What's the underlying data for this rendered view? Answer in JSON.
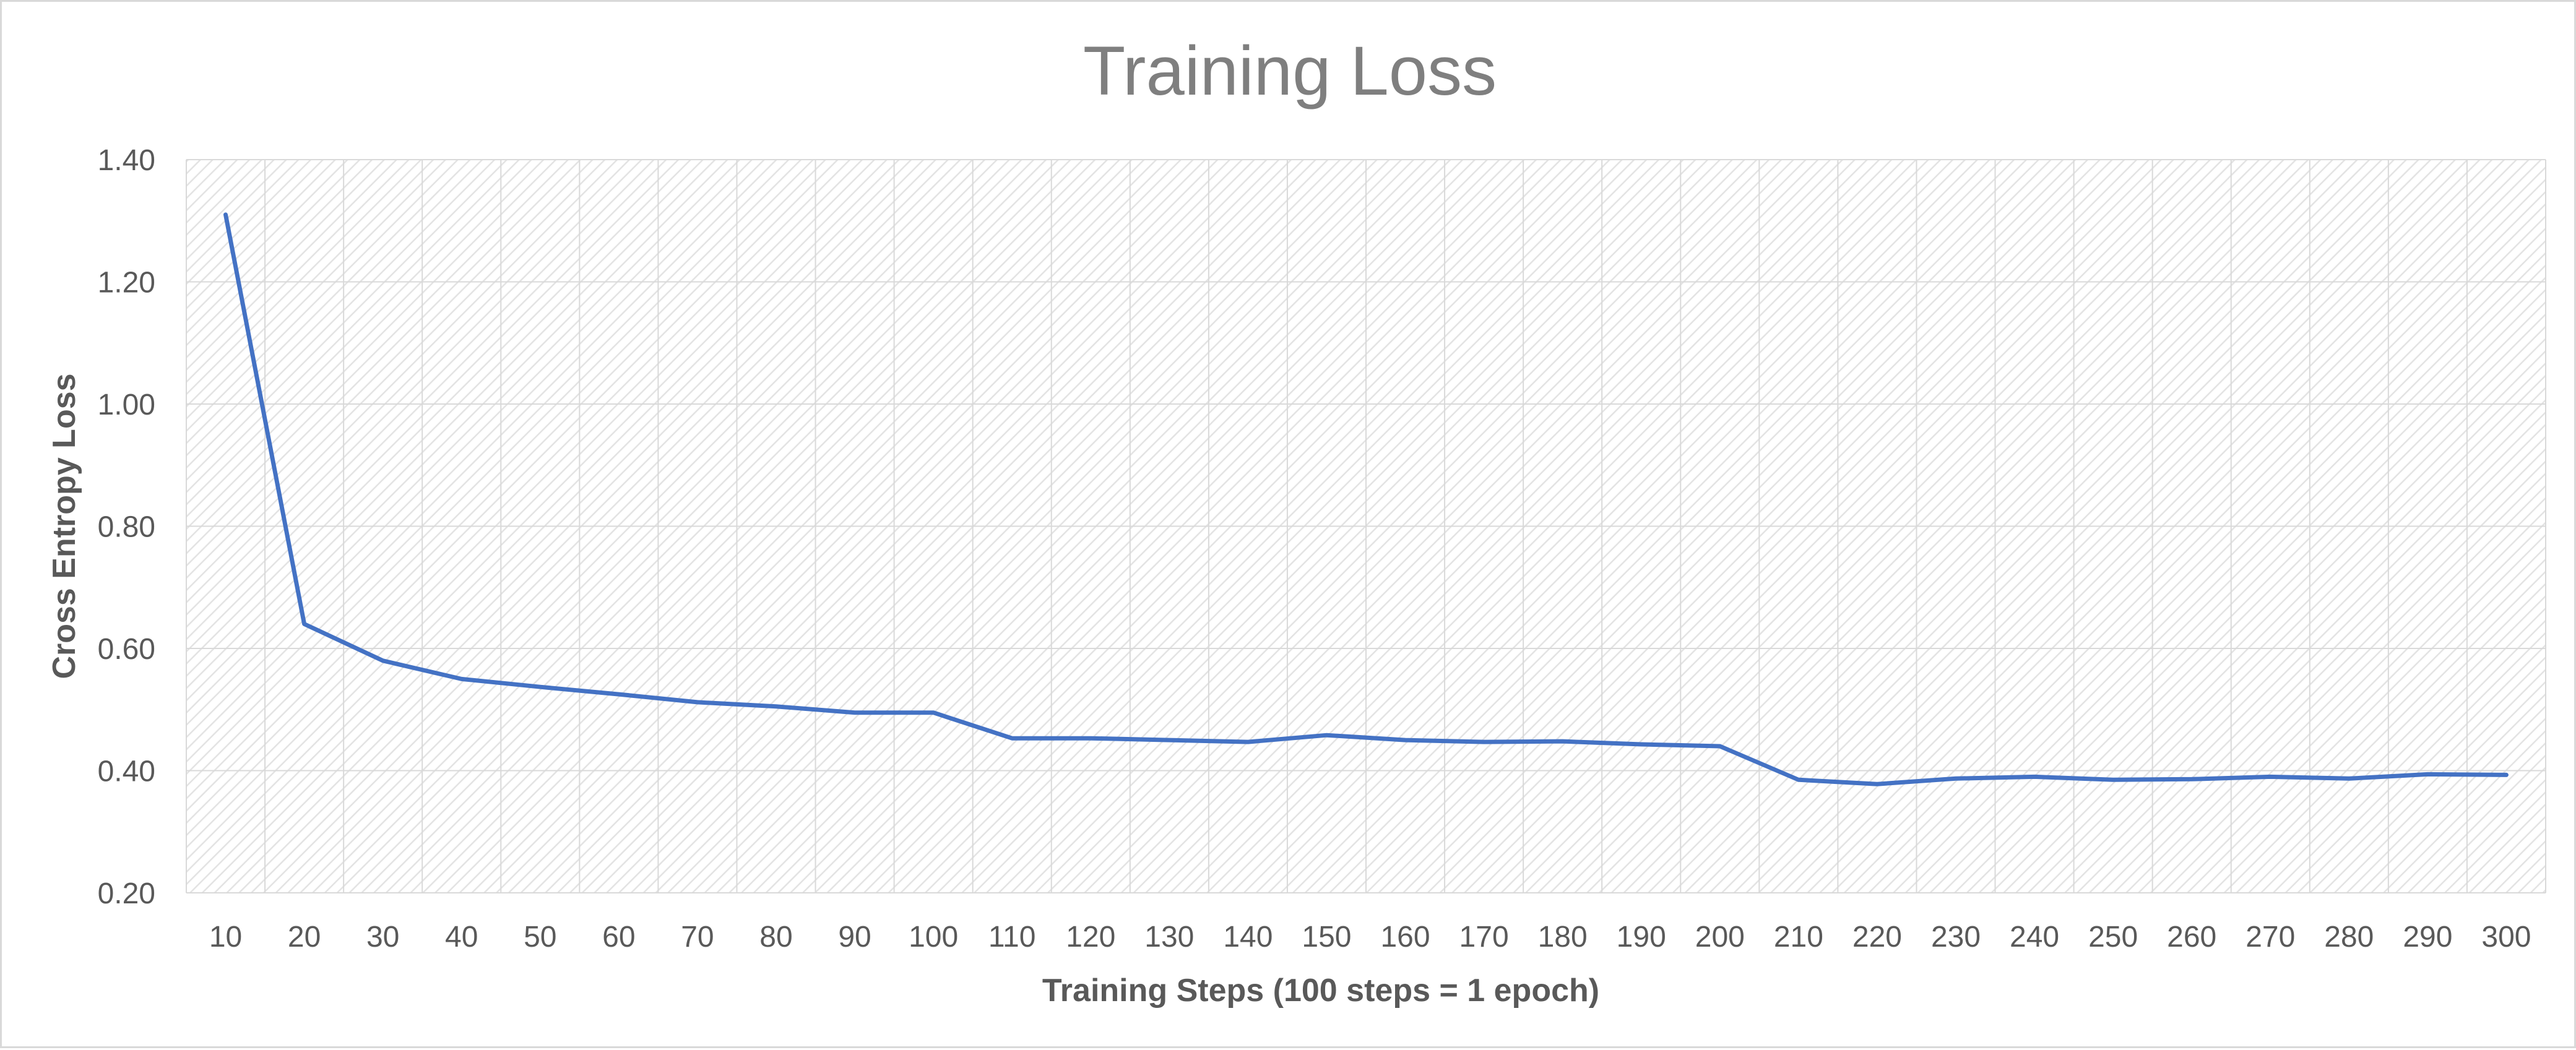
{
  "chart_data": {
    "type": "line",
    "title": "Training Loss",
    "xlabel": "Training Steps (100 steps = 1 epoch)",
    "ylabel": "Cross Entropy Loss",
    "ylim": [
      0.2,
      1.4
    ],
    "y_ticks": [
      "0.20",
      "0.40",
      "0.60",
      "0.80",
      "1.00",
      "1.20",
      "1.40"
    ],
    "y_tick_values": [
      0.2,
      0.4,
      0.6,
      0.8,
      1.0,
      1.2,
      1.4
    ],
    "grid": true,
    "legend": "none",
    "colors": {
      "line": "#4472c4",
      "grid": "#d9d9d9",
      "plot_hatch": "#e3e3e3",
      "border": "#d9d9d9"
    },
    "categories": [
      "10",
      "20",
      "30",
      "40",
      "50",
      "60",
      "70",
      "80",
      "90",
      "100",
      "110",
      "120",
      "130",
      "140",
      "150",
      "160",
      "170",
      "180",
      "190",
      "200",
      "210",
      "220",
      "230",
      "240",
      "250",
      "260",
      "270",
      "280",
      "290",
      "300"
    ],
    "series": [
      {
        "values": [
          1.31,
          0.64,
          0.58,
          0.55,
          0.537,
          0.525,
          0.512,
          0.505,
          0.495,
          0.495,
          0.453,
          0.453,
          0.45,
          0.447,
          0.458,
          0.45,
          0.447,
          0.448,
          0.443,
          0.44,
          0.385,
          0.378,
          0.387,
          0.39,
          0.385,
          0.386,
          0.39,
          0.387,
          0.394,
          0.393
        ]
      }
    ]
  }
}
